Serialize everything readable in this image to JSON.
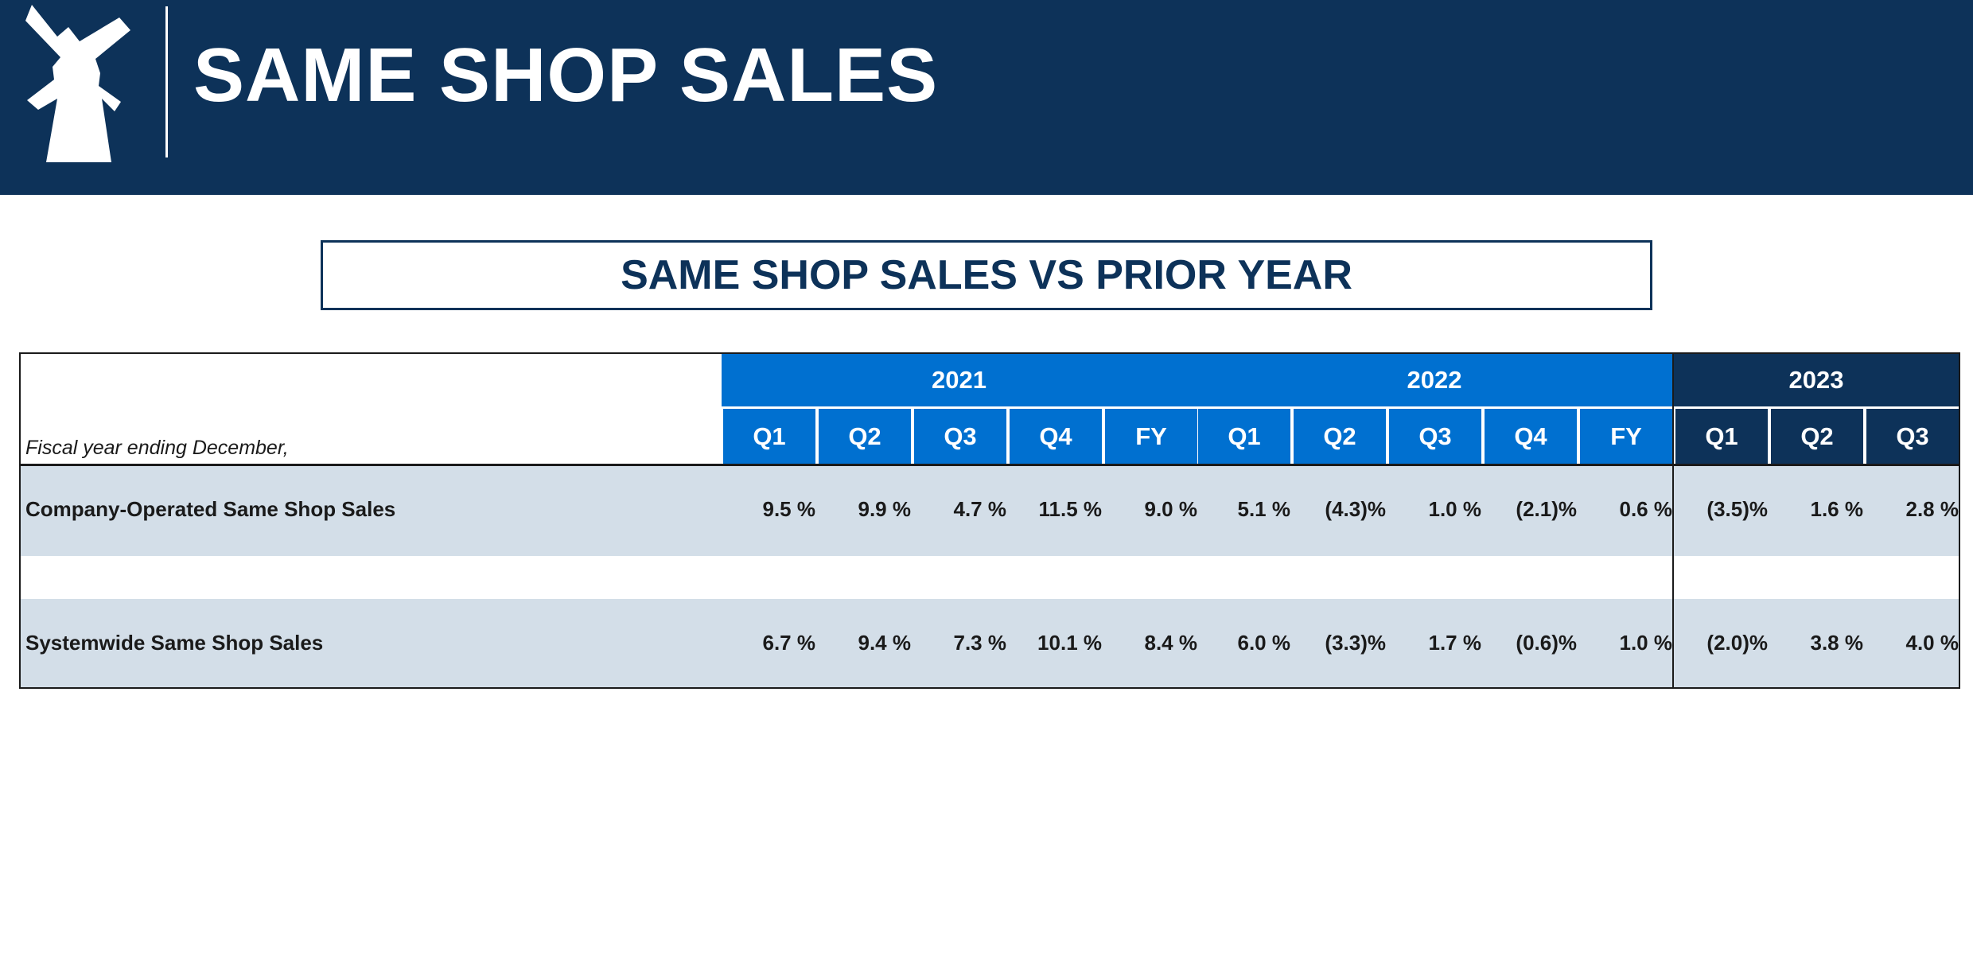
{
  "header": {
    "title": "SAME SHOP SALES",
    "logo_icon": "windmill-icon",
    "background_color": "#0d3259"
  },
  "subtitle": "SAME SHOP SALES VS PRIOR YEAR",
  "table": {
    "row_header_label": "Fiscal year ending December,",
    "years": [
      {
        "label": "2021",
        "color": "#0070d0"
      },
      {
        "label": "2022",
        "color": "#0070d0"
      },
      {
        "label": "2023",
        "color": "#0d3259"
      }
    ],
    "columns": [
      "Q1",
      "Q2",
      "Q3",
      "Q4",
      "FY",
      "Q1",
      "Q2",
      "Q3",
      "Q4",
      "FY",
      "Q1",
      "Q2",
      "Q3"
    ],
    "rows": [
      {
        "label": "Company-Operated Same Shop Sales",
        "values": [
          "9.5 %",
          "9.9 %",
          "4.7 %",
          "11.5 %",
          "9.0 %",
          "5.1 %",
          "(4.3)%",
          "1.0 %",
          "(2.1)%",
          "0.6 %",
          "(3.5)%",
          "1.6 %",
          "2.8 %"
        ]
      },
      {
        "label": "Systemwide Same Shop Sales",
        "values": [
          "6.7 %",
          "9.4 %",
          "7.3 %",
          "10.1 %",
          "8.4 %",
          "6.0 %",
          "(3.3)%",
          "1.7 %",
          "(0.6)%",
          "1.0 %",
          "(2.0)%",
          "3.8 %",
          "4.0 %"
        ]
      }
    ],
    "band_color": "#d3dee8"
  }
}
